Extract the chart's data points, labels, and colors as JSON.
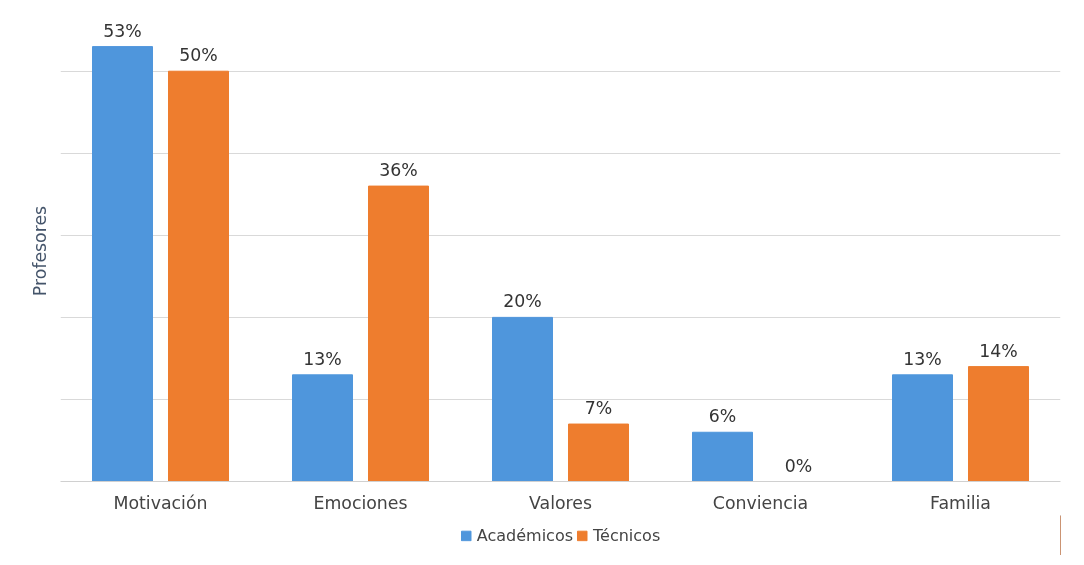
{
  "chart_data": {
    "type": "bar",
    "ylabel": "Profesores",
    "categories": [
      "Motivación",
      "Emociones",
      "Valores",
      "Conviencia",
      "Familia"
    ],
    "series": [
      {
        "name": "Académicos",
        "color": "#4f96dc",
        "values": [
          53,
          13,
          20,
          6,
          13
        ],
        "value_labels": [
          "53%",
          "13%",
          "20%",
          "6%",
          "13%"
        ]
      },
      {
        "name": "Técnicos",
        "color": "#ee7d2e",
        "values": [
          50,
          36,
          7,
          0,
          14
        ],
        "value_labels": [
          "50%",
          "36%",
          "7%",
          "0%",
          "14%"
        ]
      }
    ],
    "tick_labels": "x",
    "grid": "y",
    "legend": "bottom"
  }
}
